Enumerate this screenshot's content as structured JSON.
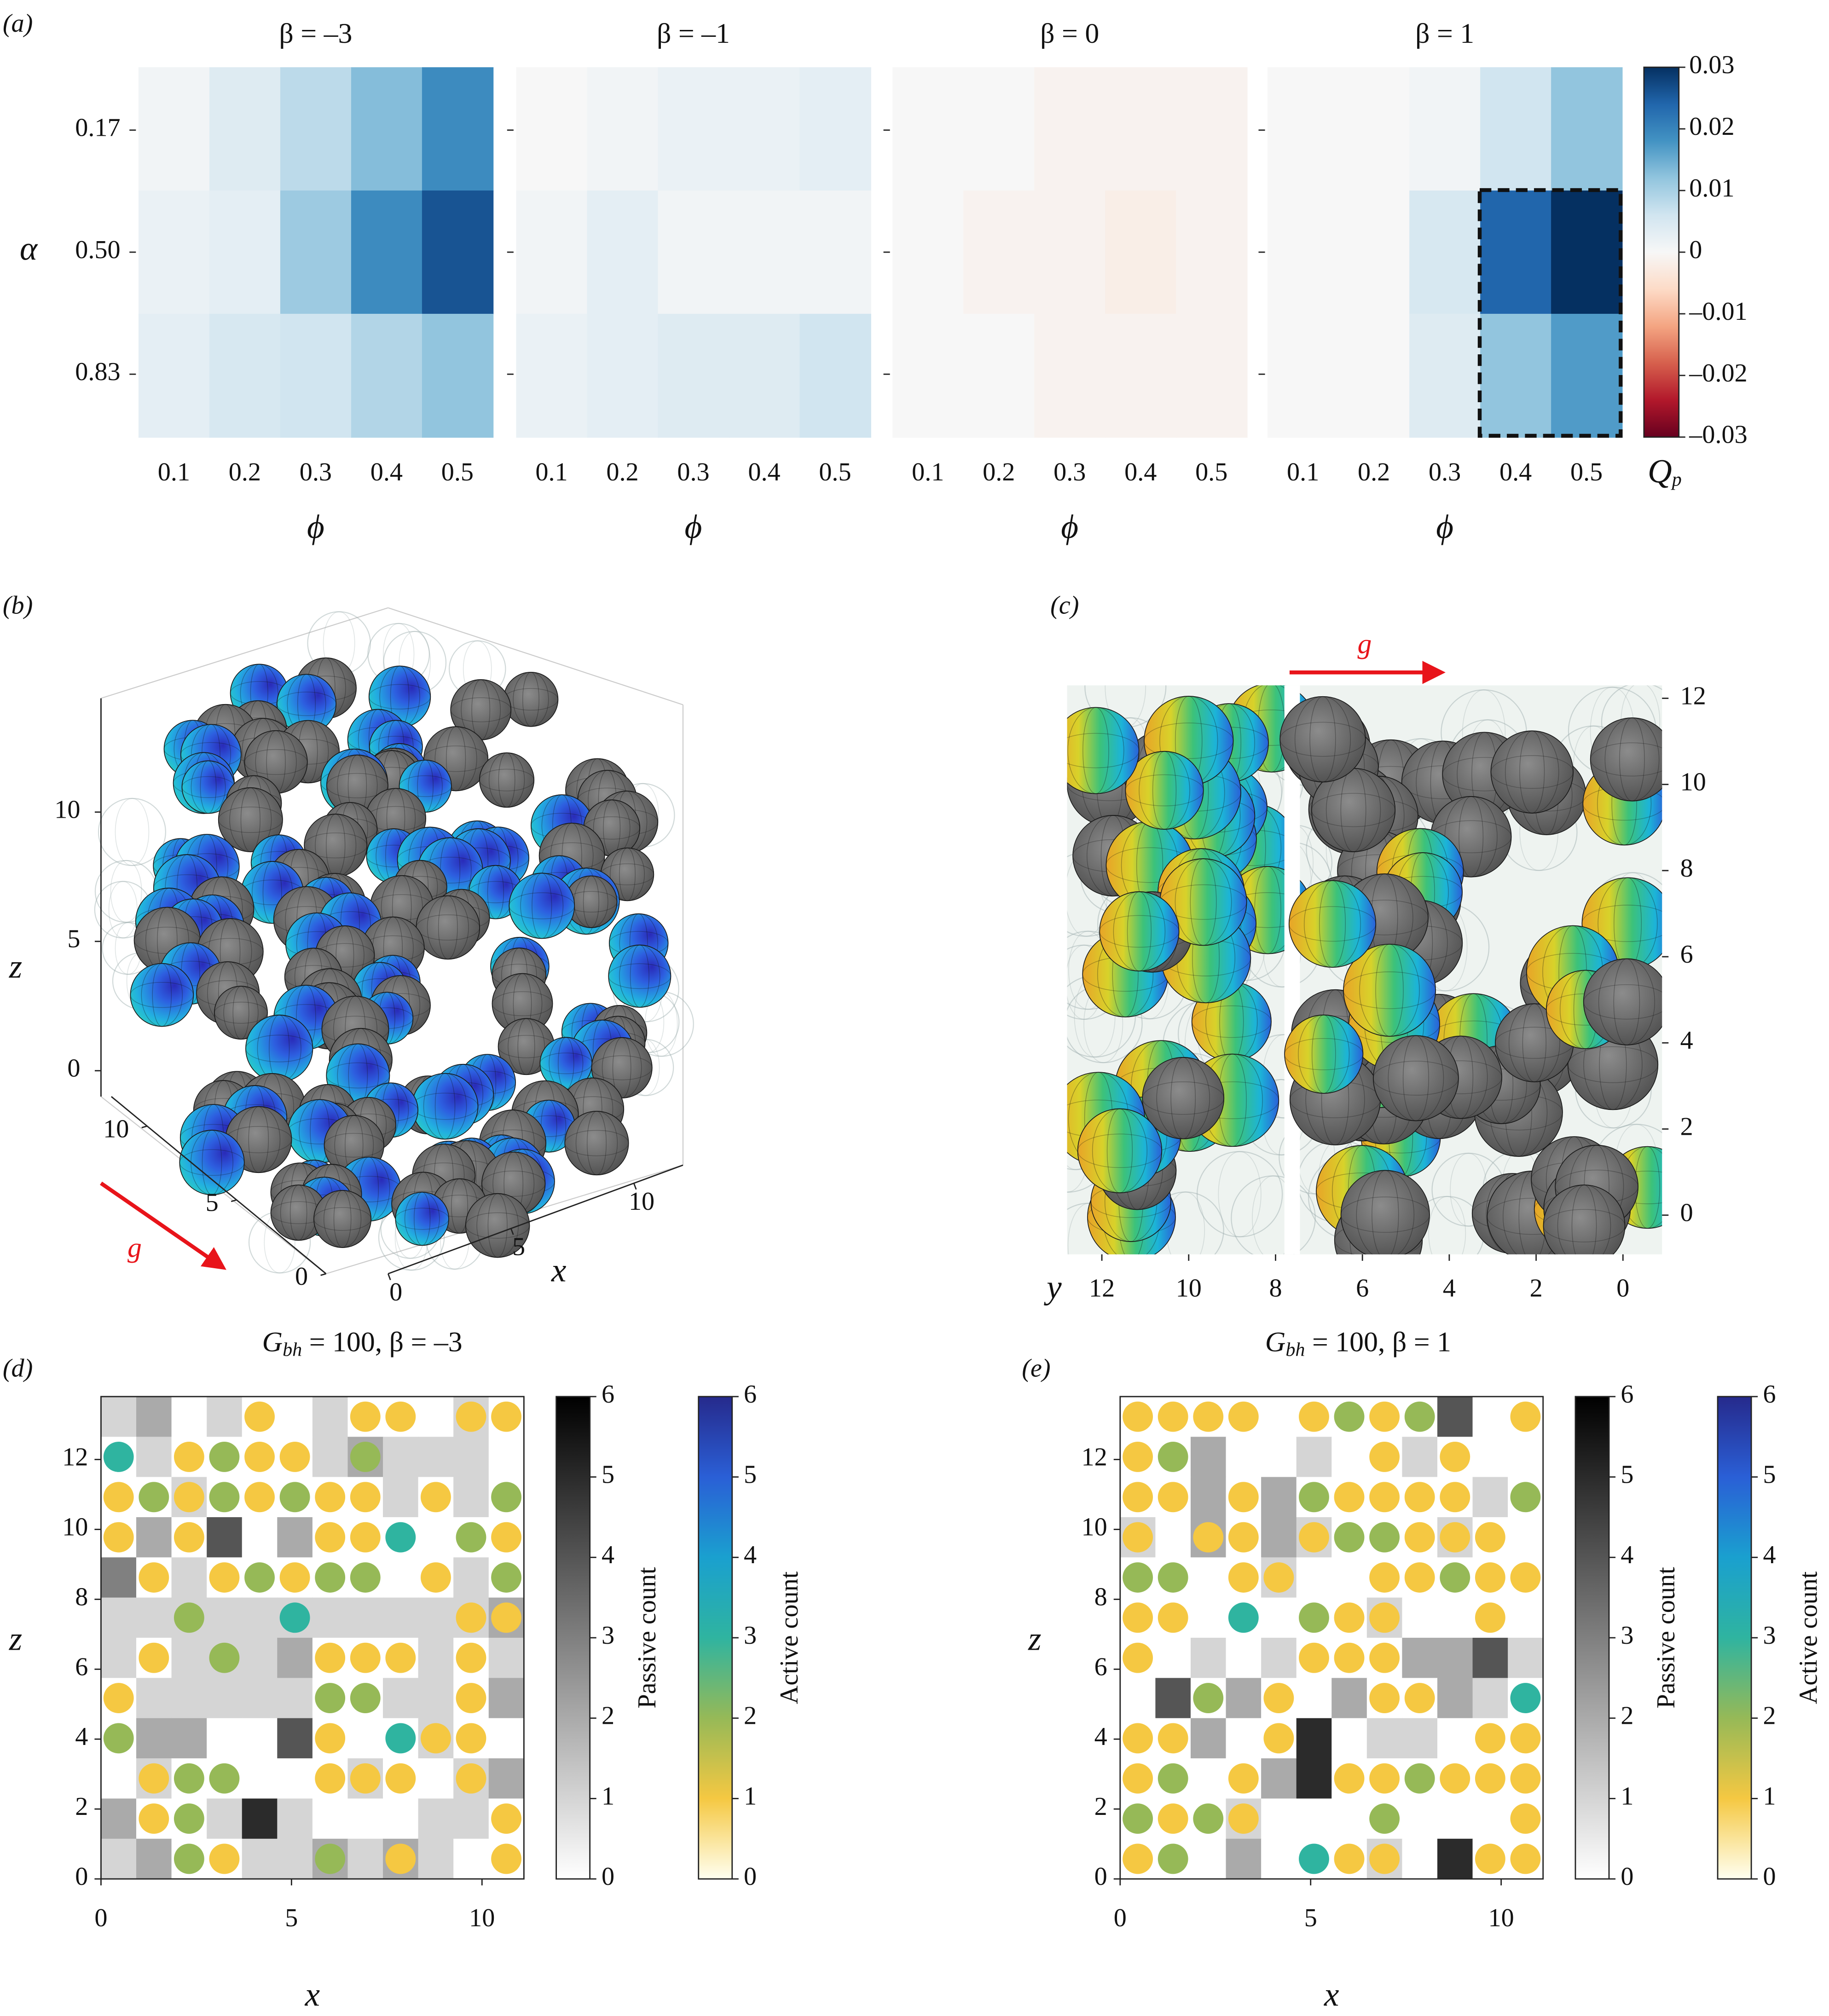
{
  "chart_data": [
    {
      "type": "heatmap",
      "panel_label": "(a)",
      "title": "β = –3",
      "x_label": "ϕ",
      "y_label": "α",
      "categories": [
        0.1,
        0.2,
        0.3,
        0.4,
        0.5
      ],
      "ylim": [
        1,
        0
      ],
      "yticks": [
        {
          "value": 0.17,
          "label": "0.17"
        },
        {
          "value": 0.5,
          "label": "0.50"
        },
        {
          "value": 0.83,
          "label": "0.83"
        }
      ],
      "values": [
        [
          0.001,
          0.004,
          0.008,
          0.013,
          0.019
        ],
        [
          0.002,
          0.003,
          0.011,
          0.019,
          0.026
        ],
        [
          0.003,
          0.005,
          0.006,
          0.009,
          0.012
        ]
      ]
    },
    {
      "type": "heatmap",
      "title": "β = –1",
      "x_label": "ϕ",
      "categories": [
        0.1,
        0.2,
        0.3,
        0.4,
        0.5
      ],
      "values": [
        [
          0,
          0.001,
          0.002,
          0.002,
          0.003
        ],
        [
          0.001,
          0.003,
          0.001,
          0.001,
          0.001
        ],
        [
          0.002,
          0.003,
          0.004,
          0.004,
          0.006
        ]
      ]
    },
    {
      "type": "heatmap",
      "title": "β = 0",
      "x_label": "ϕ",
      "categories": [
        0.1,
        0.2,
        0.3,
        0.4,
        0.5
      ],
      "values": [
        [
          0,
          0,
          -0.001,
          -0.001,
          -0.001
        ],
        [
          0,
          -0.001,
          -0.001,
          -0.002,
          -0.001
        ],
        [
          0,
          0,
          -0.001,
          -0.001,
          -0.001
        ]
      ]
    },
    {
      "type": "heatmap",
      "title": "β = 1",
      "x_label": "ϕ",
      "categories": [
        0.1,
        0.2,
        0.3,
        0.4,
        0.5
      ],
      "values": [
        [
          0,
          0,
          0.001,
          0.006,
          0.012
        ],
        [
          0,
          0,
          0.005,
          0.024,
          0.03
        ],
        [
          0,
          0,
          0.004,
          0.012,
          0.017
        ]
      ],
      "colorbar": {
        "label": {
          "symbol": "Q",
          "subscript": "p"
        },
        "lim": [
          -0.03,
          0.03
        ],
        "colors": [
          "#67001f",
          "#b2182b",
          "#d6604d",
          "#f4a582",
          "#fddbc7",
          "#f7f7f7",
          "#d1e5f0",
          "#92c5de",
          "#4393c3",
          "#2166ac",
          "#053061"
        ],
        "ticks": [
          0.03,
          0.02,
          0.01,
          0,
          {
            "value": -0.01,
            "label": "–0.01"
          },
          {
            "value": -0.02,
            "label": "–0.02"
          },
          {
            "value": -0.03,
            "label": "–0.03"
          }
        ]
      }
    },
    {
      "type": "render3d",
      "panel_label": "(b)",
      "title": {
        "symbol": "G",
        "subscript": "bh",
        "text": " = 100, β = –3"
      },
      "x_label": "x",
      "z_label": "z",
      "annotation": "g",
      "xlim": [
        0,
        12
      ],
      "xticks": [
        0,
        5,
        10
      ],
      "ylim": [
        0,
        12
      ],
      "yticks": [
        0,
        5,
        10
      ],
      "zlim": [
        -1,
        14.4
      ],
      "zticks": [
        0,
        5,
        10
      ]
    },
    {
      "type": "render3d-side",
      "panel_label": "(c)",
      "title": {
        "symbol": "G",
        "subscript": "bh",
        "text": " = 100, β = 1"
      },
      "y_label": "y",
      "annotation": "g",
      "ylim": [
        12.8,
        -0.9
      ],
      "yticks": [
        12,
        10,
        8,
        6,
        4,
        2,
        0
      ],
      "zlim": [
        -1,
        12
      ],
      "zticks": [
        0,
        2,
        4,
        6,
        8,
        10,
        12
      ]
    },
    {
      "type": "heatmap-scatter",
      "panel_label": "(d)",
      "x_label": "x",
      "y_label": "z",
      "xlim": [
        0,
        11.1
      ],
      "xticks": [
        0,
        5,
        10
      ],
      "ylim": [
        0,
        13.8
      ],
      "yticks": [
        0,
        2,
        4,
        6,
        8,
        10,
        12
      ],
      "passive": [
        [
          1,
          2,
          0,
          1,
          0,
          0,
          1,
          0,
          0,
          0,
          1,
          0
        ],
        [
          0,
          1,
          0,
          0,
          0,
          0,
          1,
          2,
          1,
          1,
          1,
          0
        ],
        [
          0,
          0,
          1,
          0,
          0,
          0,
          0,
          0,
          1,
          0,
          1,
          0
        ],
        [
          0,
          2,
          0,
          4,
          0,
          2,
          0,
          0,
          0,
          0,
          0,
          0
        ],
        [
          3,
          0,
          1,
          0,
          0,
          0,
          0,
          0,
          0,
          0,
          1,
          0
        ],
        [
          1,
          1,
          1,
          1,
          1,
          1,
          1,
          1,
          1,
          1,
          1,
          2
        ],
        [
          1,
          0,
          1,
          1,
          1,
          2,
          0,
          0,
          0,
          1,
          0,
          1
        ],
        [
          0,
          1,
          1,
          1,
          1,
          1,
          0,
          0,
          1,
          1,
          0,
          2
        ],
        [
          0,
          2,
          2,
          0,
          0,
          4,
          0,
          0,
          0,
          1,
          0,
          0
        ],
        [
          0,
          1,
          0,
          0,
          0,
          0,
          0,
          1,
          0,
          0,
          1,
          2
        ],
        [
          2,
          0,
          0,
          1,
          5,
          1,
          0,
          0,
          0,
          1,
          1,
          0
        ],
        [
          1,
          2,
          0,
          0,
          1,
          1,
          2,
          1,
          2,
          1,
          0,
          0
        ]
      ],
      "active": [
        [
          0,
          0,
          0,
          0,
          1,
          0,
          0,
          1,
          1,
          0,
          1,
          1
        ],
        [
          3,
          0,
          1,
          2,
          1,
          1,
          0,
          2,
          0,
          0,
          0,
          0
        ],
        [
          1,
          2,
          1,
          2,
          1,
          2,
          1,
          1,
          0,
          1,
          0,
          2
        ],
        [
          1,
          0,
          1,
          0,
          0,
          0,
          1,
          1,
          3,
          0,
          2,
          1
        ],
        [
          0,
          1,
          0,
          1,
          2,
          1,
          2,
          2,
          0,
          1,
          0,
          2
        ],
        [
          0,
          0,
          2,
          0,
          0,
          3,
          0,
          0,
          0,
          0,
          1,
          1
        ],
        [
          0,
          1,
          0,
          2,
          0,
          0,
          1,
          1,
          1,
          0,
          1,
          0
        ],
        [
          1,
          0,
          0,
          0,
          0,
          0,
          2,
          2,
          0,
          0,
          1,
          0
        ],
        [
          2,
          0,
          0,
          0,
          0,
          0,
          1,
          0,
          3,
          1,
          1,
          0
        ],
        [
          0,
          1,
          2,
          2,
          0,
          0,
          1,
          1,
          1,
          0,
          1,
          0
        ],
        [
          0,
          1,
          2,
          0,
          0,
          0,
          0,
          0,
          0,
          0,
          0,
          1
        ],
        [
          0,
          0,
          2,
          1,
          0,
          0,
          2,
          0,
          1,
          0,
          0,
          1
        ]
      ],
      "colorbars": [
        {
          "label": "Passive count",
          "lim": [
            0,
            6
          ],
          "ticks": [
            0,
            1,
            2,
            3,
            4,
            5,
            6
          ],
          "colors": [
            "#ffffff",
            "#000000"
          ]
        },
        {
          "label": "Active count",
          "lim": [
            0,
            6
          ],
          "ticks": [
            0,
            1,
            2,
            3,
            4,
            5,
            6
          ],
          "colors": [
            "#fffff0",
            "#f5c842",
            "#96b957",
            "#2fb4a0",
            "#1aa0cf",
            "#2a5fd6",
            "#262a8c"
          ]
        }
      ]
    },
    {
      "type": "heatmap-scatter",
      "panel_label": "(e)",
      "x_label": "x",
      "y_label": "z",
      "xlim": [
        0,
        11.1
      ],
      "xticks": [
        0,
        5,
        10
      ],
      "ylim": [
        0,
        13.8
      ],
      "yticks": [
        0,
        2,
        4,
        6,
        8,
        10,
        12
      ],
      "passive": [
        [
          0,
          0,
          0,
          0,
          0,
          0,
          0,
          0,
          0,
          4,
          0,
          0
        ],
        [
          0,
          0,
          2,
          0,
          0,
          1,
          0,
          0,
          1,
          0,
          0,
          0
        ],
        [
          0,
          0,
          2,
          0,
          2,
          0,
          0,
          0,
          0,
          0,
          1,
          0
        ],
        [
          1,
          0,
          2,
          0,
          2,
          1,
          0,
          0,
          0,
          1,
          0,
          0
        ],
        [
          0,
          0,
          0,
          0,
          1,
          0,
          0,
          0,
          0,
          0,
          0,
          0
        ],
        [
          0,
          0,
          0,
          0,
          0,
          0,
          0,
          1,
          0,
          0,
          0,
          0
        ],
        [
          0,
          0,
          1,
          0,
          1,
          0,
          0,
          0,
          2,
          2,
          4,
          1
        ],
        [
          0,
          4,
          0,
          2,
          0,
          0,
          2,
          0,
          0,
          2,
          1,
          0
        ],
        [
          0,
          0,
          2,
          0,
          0,
          5,
          0,
          1,
          1,
          0,
          0,
          0
        ],
        [
          0,
          0,
          0,
          0,
          2,
          5,
          0,
          0,
          0,
          0,
          0,
          0
        ],
        [
          0,
          0,
          0,
          1,
          0,
          0,
          0,
          0,
          0,
          0,
          0,
          0
        ],
        [
          0,
          0,
          0,
          2,
          0,
          0,
          0,
          1,
          0,
          5,
          0,
          0
        ]
      ],
      "active": [
        [
          1,
          1,
          1,
          1,
          0,
          1,
          2,
          1,
          2,
          0,
          0,
          1
        ],
        [
          1,
          2,
          0,
          0,
          0,
          0,
          0,
          1,
          0,
          1,
          0,
          0
        ],
        [
          1,
          1,
          0,
          1,
          0,
          2,
          1,
          1,
          1,
          1,
          0,
          2
        ],
        [
          1,
          0,
          1,
          1,
          0,
          1,
          2,
          2,
          1,
          1,
          1,
          0
        ],
        [
          2,
          2,
          0,
          1,
          1,
          0,
          0,
          1,
          1,
          2,
          1,
          1
        ],
        [
          1,
          1,
          0,
          3,
          0,
          2,
          1,
          1,
          0,
          0,
          1,
          0
        ],
        [
          1,
          0,
          0,
          0,
          0,
          1,
          1,
          1,
          0,
          0,
          0,
          0
        ],
        [
          0,
          0,
          2,
          0,
          1,
          0,
          0,
          1,
          1,
          0,
          0,
          3
        ],
        [
          1,
          1,
          0,
          0,
          1,
          0,
          0,
          0,
          0,
          0,
          1,
          1
        ],
        [
          1,
          2,
          0,
          1,
          0,
          0,
          1,
          1,
          2,
          1,
          1,
          1
        ],
        [
          2,
          1,
          2,
          1,
          0,
          0,
          0,
          2,
          0,
          0,
          0,
          1
        ],
        [
          1,
          2,
          0,
          0,
          0,
          3,
          1,
          1,
          0,
          0,
          1,
          1
        ]
      ],
      "colorbars": [
        {
          "label": "Passive count",
          "lim": [
            0,
            6
          ],
          "ticks": [
            0,
            1,
            2,
            3,
            4,
            5,
            6
          ],
          "colors": [
            "#ffffff",
            "#000000"
          ]
        },
        {
          "label": "Active count",
          "lim": [
            0,
            6
          ],
          "ticks": [
            0,
            1,
            2,
            3,
            4,
            5,
            6
          ],
          "colors": [
            "#fffff0",
            "#f5c842",
            "#96b957",
            "#2fb4a0",
            "#1aa0cf",
            "#2a5fd6",
            "#262a8c"
          ]
        }
      ]
    }
  ]
}
